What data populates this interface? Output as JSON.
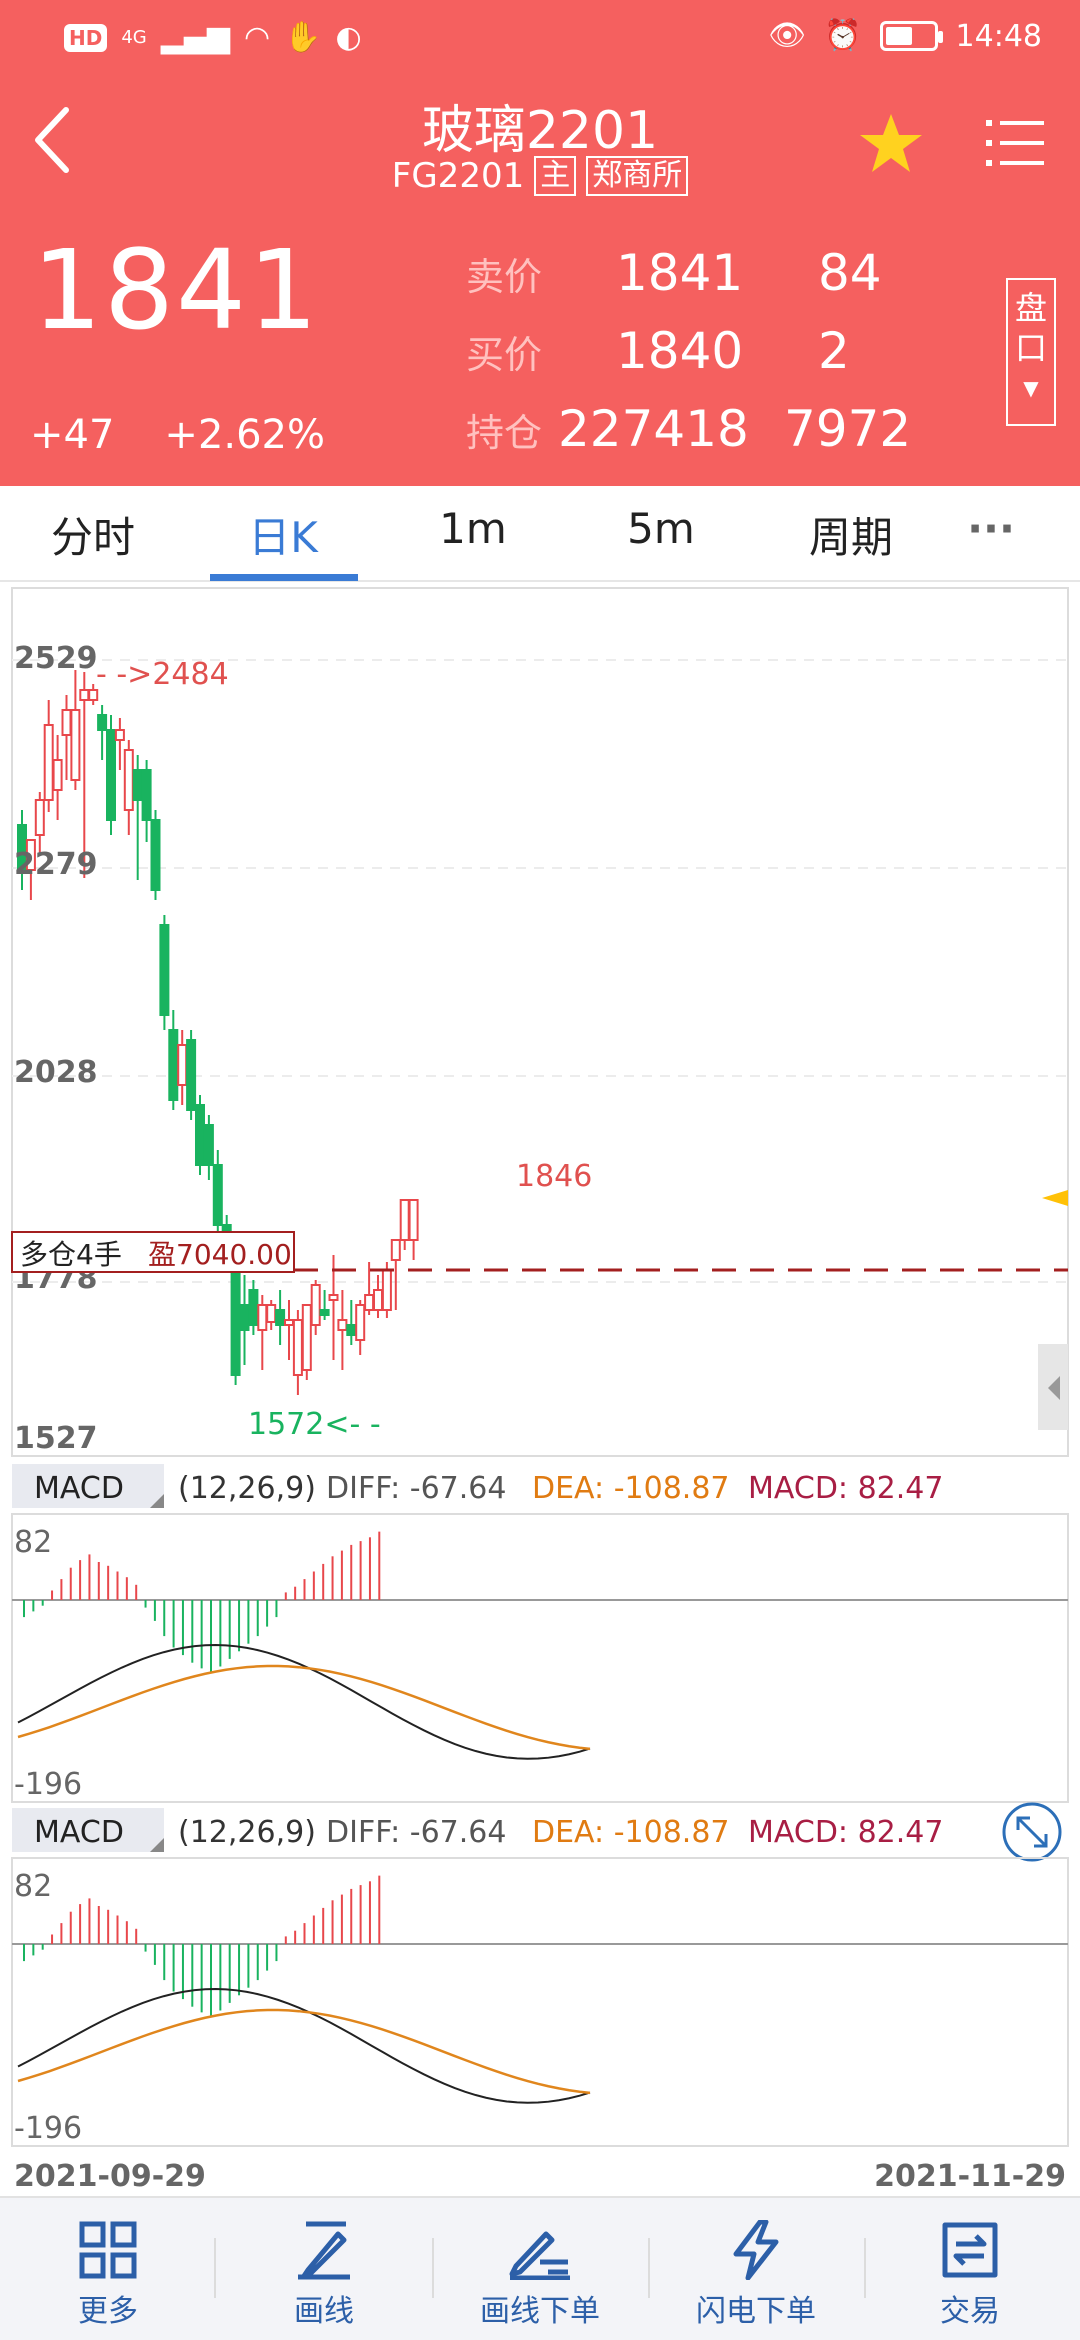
{
  "status_bar": {
    "time": "14:48",
    "network": "4G",
    "battery_fraction": 0.55
  },
  "header": {
    "title": "玻璃2201",
    "code": "FG2201",
    "tag_main": "主",
    "tag_exchange": "郑商所",
    "last_price": "1841",
    "change": "+47",
    "change_pct": "+2.62%",
    "ask_label": "卖价",
    "ask_price": "1841",
    "ask_vol": "84",
    "bid_label": "买价",
    "bid_price": "1840",
    "bid_vol": "2",
    "oi_label": "持仓",
    "oi_value": "227418",
    "oi_change": "7972",
    "pankou_label_1": "盘",
    "pankou_label_2": "口",
    "colors": {
      "header_bg": "#f5605f",
      "star": "#ffd21f"
    }
  },
  "tabs": [
    {
      "label": "分时",
      "active": false
    },
    {
      "label": "日K",
      "active": true
    },
    {
      "label": "1m",
      "active": false
    },
    {
      "label": "5m",
      "active": false
    },
    {
      "label": "周期",
      "active": false
    },
    {
      "label": "···",
      "active": false
    }
  ],
  "kline": {
    "y_labels": [
      "2529",
      "2279",
      "2028",
      "1778",
      "1527"
    ],
    "high_marker": "- ->2484",
    "low_marker": "1572<- -",
    "last_marker": "1846",
    "position_label": "多仓4手",
    "position_pnl": "盈7040.00",
    "colors": {
      "up": "#e8474b",
      "down": "#19b35f",
      "position_line": "#a31f1f"
    }
  },
  "macd_panels": [
    {
      "name": "MACD",
      "params": "(12,26,9)",
      "diff": "DIFF: -67.64",
      "dea": "DEA: -108.87",
      "macd": "MACD: 82.47",
      "ymax": "82",
      "ymin": "-196"
    },
    {
      "name": "MACD",
      "params": "(12,26,9)",
      "diff": "DIFF: -67.64",
      "dea": "DEA: -108.87",
      "macd": "MACD: 82.47",
      "ymax": "82",
      "ymin": "-196"
    }
  ],
  "dates": {
    "start": "2021-09-29",
    "end": "2021-11-29"
  },
  "bottom_bar": [
    {
      "label": "更多",
      "icon": "grid-icon"
    },
    {
      "label": "画线",
      "icon": "pen-icon"
    },
    {
      "label": "画线下单",
      "icon": "pen-order-icon"
    },
    {
      "label": "闪电下单",
      "icon": "lightning-icon"
    },
    {
      "label": "交易",
      "icon": "trade-icon"
    }
  ]
}
